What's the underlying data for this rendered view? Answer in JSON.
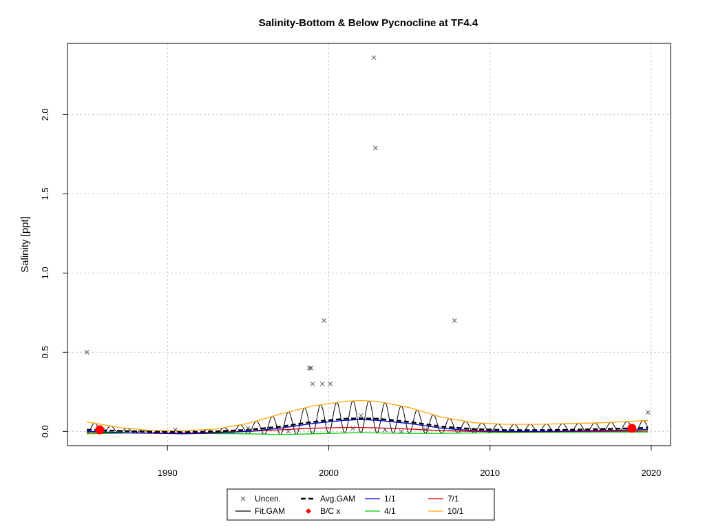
{
  "chart_data": {
    "type": "line",
    "title": "Salinity-Bottom & Below Pycnocline at TF4.4",
    "xlabel": "",
    "ylabel": "Salinity [ppt]",
    "xlim": [
      1983.8,
      2021.2
    ],
    "ylim": [
      -0.09,
      2.45
    ],
    "x_ticks": [
      1990,
      2000,
      2010,
      2020
    ],
    "x_tick_labels": [
      "1990",
      "2000",
      "2010",
      "2020"
    ],
    "y_ticks": [
      0.0,
      0.5,
      1.0,
      1.5,
      2.0
    ],
    "y_tick_labels": [
      "0.0",
      "0.5",
      "1.0",
      "1.5",
      "2.0"
    ],
    "grid": true,
    "legend_position": "bottom-center",
    "legend": [
      {
        "key": "uncen",
        "label": "Uncen."
      },
      {
        "key": "avg_gam",
        "label": "Avg.GAM"
      },
      {
        "key": "s11",
        "label": "1/1"
      },
      {
        "key": "s71",
        "label": "7/1"
      },
      {
        "key": "fit_gam",
        "label": "Fit.GAM"
      },
      {
        "key": "bc",
        "label": "B/C x"
      },
      {
        "key": "s41",
        "label": "4/1"
      },
      {
        "key": "s101",
        "label": "10/1"
      }
    ],
    "colors": {
      "uncen": "#555555",
      "fit_gam": "#000000",
      "avg_gam": "#000000",
      "bc": "#ff0000",
      "s11": "#0000cc",
      "s41": "#00cc00",
      "s71": "#cc0000",
      "s101": "#ffa500"
    },
    "uncensored_points": {
      "x": [
        1985.0,
        1998.8,
        1998.9,
        1999.0,
        1999.6,
        1999.7,
        2000.1,
        2002.8,
        2002.9,
        2007.8,
        2019.8,
        1986.0,
        1990.5,
        1995.0,
        1997.5,
        2001.5,
        2002.0,
        2003.5,
        2004.5,
        2006.0
      ],
      "y": [
        0.5,
        0.4,
        0.4,
        0.3,
        0.3,
        0.7,
        0.3,
        2.36,
        1.79,
        0.7,
        0.12,
        0.01,
        0.01,
        0.02,
        0.0,
        0.02,
        0.1,
        0.01,
        0.0,
        0.01
      ]
    },
    "bc_points": {
      "x": [
        1985.8,
        2018.8
      ],
      "y": [
        0.01,
        0.02
      ]
    },
    "avg_gam": {
      "x": [
        1985,
        1988,
        1991,
        1993,
        1995,
        1997,
        1999,
        2001,
        2002,
        2003,
        2005,
        2007,
        2009,
        2011,
        2013,
        2015,
        2017,
        2019,
        2019.8
      ],
      "y": [
        0.01,
        0.0,
        -0.005,
        0.0,
        0.01,
        0.03,
        0.06,
        0.08,
        0.082,
        0.08,
        0.06,
        0.03,
        0.015,
        0.008,
        0.008,
        0.01,
        0.015,
        0.02,
        0.022
      ]
    },
    "series": [
      {
        "key": "s11",
        "name": "1/1",
        "x": [
          1985,
          1988,
          1991,
          1993,
          1995,
          1997,
          1999,
          2001,
          2002,
          2003,
          2005,
          2007,
          2009,
          2011,
          2013,
          2015,
          2017,
          2019,
          2019.8
        ],
        "y": [
          0.0,
          -0.01,
          -0.015,
          -0.01,
          0.0,
          0.02,
          0.05,
          0.07,
          0.075,
          0.07,
          0.05,
          0.02,
          0.005,
          0.0,
          0.0,
          0.002,
          0.005,
          0.01,
          0.012
        ]
      },
      {
        "key": "s41",
        "name": "4/1",
        "x": [
          1985,
          1988,
          1991,
          1993,
          1995,
          1997,
          1999,
          2001,
          2002,
          2003,
          2005,
          2007,
          2009,
          2011,
          2013,
          2015,
          2017,
          2019,
          2019.8
        ],
        "y": [
          -0.015,
          -0.01,
          -0.012,
          -0.014,
          -0.015,
          -0.02,
          -0.015,
          -0.01,
          -0.008,
          -0.01,
          -0.012,
          -0.012,
          -0.01,
          -0.008,
          -0.006,
          -0.005,
          -0.004,
          -0.004,
          -0.004
        ]
      },
      {
        "key": "s71",
        "name": "7/1",
        "x": [
          1985,
          1988,
          1991,
          1993,
          1995,
          1997,
          1999,
          2001,
          2002,
          2003,
          2005,
          2007,
          2009,
          2011,
          2013,
          2015,
          2017,
          2019,
          2019.8
        ],
        "y": [
          -0.005,
          -0.01,
          -0.01,
          -0.005,
          0.0,
          0.01,
          0.02,
          0.025,
          0.025,
          0.022,
          0.015,
          0.005,
          0.0,
          -0.002,
          -0.002,
          0.0,
          0.0,
          0.002,
          0.003
        ]
      },
      {
        "key": "s101",
        "name": "10/1",
        "x": [
          1985,
          1987,
          1989,
          1991,
          1993,
          1995,
          1997,
          1999,
          2001,
          2002,
          2003,
          2005,
          2007,
          2009,
          2011,
          2013,
          2015,
          2017,
          2019,
          2019.8
        ],
        "y": [
          0.06,
          0.025,
          0.005,
          0.005,
          0.015,
          0.05,
          0.11,
          0.16,
          0.19,
          0.195,
          0.19,
          0.15,
          0.09,
          0.055,
          0.045,
          0.045,
          0.05,
          0.055,
          0.065,
          0.07
        ]
      }
    ]
  }
}
